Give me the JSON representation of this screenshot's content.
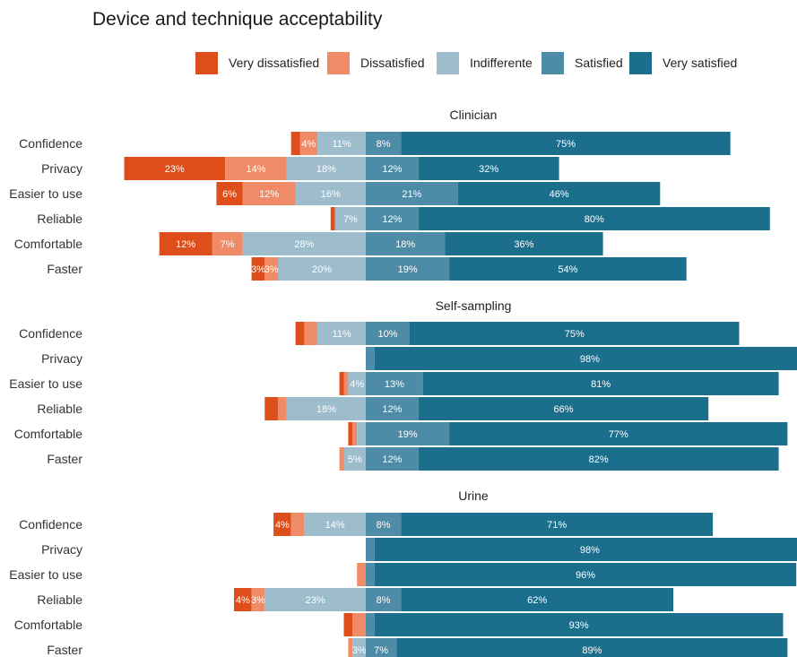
{
  "chart_data": {
    "type": "bar",
    "orientation": "horizontal-diverging",
    "title": "Device and technique acceptability",
    "colors": {
      "Very dissatisfied": "#de4e1b",
      "Dissatisfied": "#ef8b67",
      "Indifferente": "#9dbccc",
      "Satisfied": "#4d8ba6",
      "Very satisfied": "#1b6f8d"
    },
    "legend_position": "top",
    "legend": [
      "Very dissatisfied",
      "Dissatisfied",
      "Indifferente",
      "Satisfied",
      "Very satisfied"
    ],
    "categories": [
      "Confidence",
      "Privacy",
      "Easier to use",
      "Reliable",
      "Comfortable",
      "Faster"
    ],
    "panels": [
      {
        "title": "Clinician",
        "rows": [
          {
            "category": "Confidence",
            "values": [
              2,
              4,
              11,
              8,
              75
            ],
            "labels": [
              "",
              "4%",
              "11%",
              "8%",
              "75%"
            ]
          },
          {
            "category": "Privacy",
            "values": [
              23,
              14,
              18,
              12,
              32
            ],
            "labels": [
              "23%",
              "14%",
              "18%",
              "12%",
              "32%"
            ]
          },
          {
            "category": "Easier to use",
            "values": [
              6,
              12,
              16,
              21,
              46
            ],
            "labels": [
              "6%",
              "12%",
              "16%",
              "21%",
              "46%"
            ]
          },
          {
            "category": "Reliable",
            "values": [
              1,
              0,
              7,
              12,
              80
            ],
            "labels": [
              "",
              "",
              "7%",
              "12%",
              "80%"
            ]
          },
          {
            "category": "Comfortable",
            "values": [
              12,
              7,
              28,
              18,
              36
            ],
            "labels": [
              "12%",
              "7%",
              "28%",
              "18%",
              "36%"
            ]
          },
          {
            "category": "Faster",
            "values": [
              3,
              3,
              20,
              19,
              54
            ],
            "labels": [
              "3%",
              "3%",
              "20%",
              "19%",
              "54%"
            ]
          }
        ]
      },
      {
        "title": "Self-sampling",
        "rows": [
          {
            "category": "Confidence",
            "values": [
              2,
              3,
              11,
              10,
              75
            ],
            "labels": [
              "",
              "",
              "11%",
              "10%",
              "75%"
            ]
          },
          {
            "category": "Privacy",
            "values": [
              0,
              0,
              0,
              2,
              98
            ],
            "labels": [
              "",
              "",
              "",
              "",
              "98%"
            ]
          },
          {
            "category": "Easier to use",
            "values": [
              1,
              1,
              4,
              13,
              81
            ],
            "labels": [
              "",
              "",
              "4%",
              "13%",
              "81%"
            ]
          },
          {
            "category": "Reliable",
            "values": [
              3,
              2,
              18,
              12,
              66
            ],
            "labels": [
              "",
              "",
              "18%",
              "12%",
              "66%"
            ]
          },
          {
            "category": "Comfortable",
            "values": [
              1,
              1,
              2,
              19,
              77
            ],
            "labels": [
              "",
              "",
              "",
              "19%",
              "77%"
            ]
          },
          {
            "category": "Faster",
            "values": [
              0,
              1,
              5,
              12,
              82
            ],
            "labels": [
              "",
              "",
              "5%",
              "12%",
              "82%"
            ]
          }
        ]
      },
      {
        "title": "Urine",
        "rows": [
          {
            "category": "Confidence",
            "values": [
              4,
              3,
              14,
              8,
              71
            ],
            "labels": [
              "4%",
              "",
              "14%",
              "8%",
              "71%"
            ]
          },
          {
            "category": "Privacy",
            "values": [
              0,
              0,
              0,
              2,
              98
            ],
            "labels": [
              "",
              "",
              "",
              "",
              "98%"
            ]
          },
          {
            "category": "Easier to use",
            "values": [
              0,
              2,
              0,
              2,
              96
            ],
            "labels": [
              "",
              "",
              "",
              "",
              "96%"
            ]
          },
          {
            "category": "Reliable",
            "values": [
              4,
              3,
              23,
              8,
              62
            ],
            "labels": [
              "4%",
              "3%",
              "23%",
              "8%",
              "62%"
            ]
          },
          {
            "category": "Comfortable",
            "values": [
              2,
              3,
              0,
              2,
              93
            ],
            "labels": [
              "",
              "",
              "",
              "",
              "93%"
            ]
          },
          {
            "category": "Faster",
            "values": [
              0,
              1,
              3,
              7,
              89
            ],
            "labels": [
              "",
              "",
              "3%",
              "7%",
              "89%"
            ]
          }
        ]
      }
    ]
  }
}
